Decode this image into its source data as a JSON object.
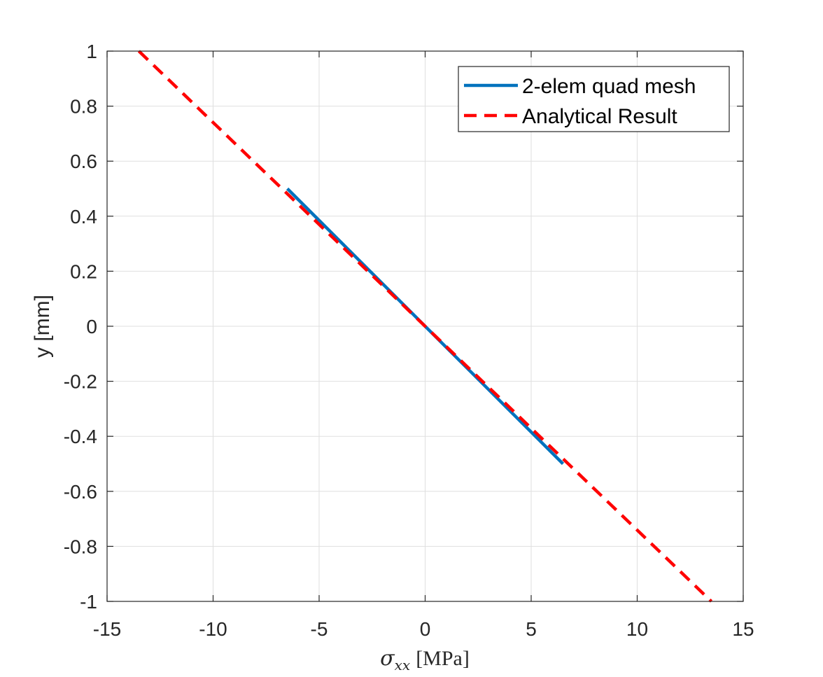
{
  "chart_data": {
    "type": "line",
    "xlabel": {
      "symbol": "σ",
      "subscript": "xx",
      "unit": "[MPa]"
    },
    "ylabel": "y [mm]",
    "xlim": [
      -15,
      15
    ],
    "ylim": [
      -1,
      1
    ],
    "xticks": [
      -15,
      -10,
      -5,
      0,
      5,
      10,
      15
    ],
    "yticks": [
      -1,
      -0.8,
      -0.6,
      -0.4,
      -0.2,
      0,
      0.2,
      0.4,
      0.6,
      0.8,
      1
    ],
    "xtick_labels": [
      "-15",
      "-10",
      "-5",
      "0",
      "5",
      "10",
      "15"
    ],
    "ytick_labels": [
      "-1",
      "-0.8",
      "-0.6",
      "-0.4",
      "-0.2",
      "0",
      "0.2",
      "0.4",
      "0.6",
      "0.8",
      "1"
    ],
    "grid": true,
    "legend_position": "top-right",
    "series": [
      {
        "name": "2-elem quad mesh",
        "color": "#0072bd",
        "style": "solid",
        "x": [
          -6.5,
          6.5
        ],
        "y": [
          0.5,
          -0.5
        ]
      },
      {
        "name": "Analytical Result",
        "color": "#ff0000",
        "style": "dashed",
        "x": [
          -13.5,
          13.5
        ],
        "y": [
          1,
          -1
        ]
      }
    ]
  }
}
